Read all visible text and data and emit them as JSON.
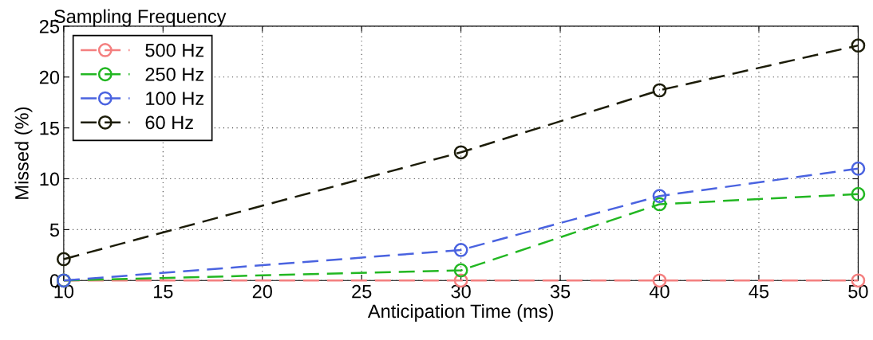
{
  "chart_data": {
    "type": "line",
    "title": "Sampling Frequency",
    "xlabel": "Anticipation Time (ms)",
    "ylabel": "Missed (%)",
    "x": [
      10,
      30,
      40,
      50
    ],
    "series": [
      {
        "name": "500 Hz",
        "color": "#f47f7f",
        "values": [
          0,
          0,
          0,
          0
        ]
      },
      {
        "name": "250 Hz",
        "color": "#22b722",
        "values": [
          0,
          1.0,
          7.5,
          8.5
        ]
      },
      {
        "name": "100 Hz",
        "color": "#4a63e0",
        "values": [
          0,
          3.0,
          8.3,
          11.0
        ]
      },
      {
        "name": "60 Hz",
        "color": "#1c1c08",
        "values": [
          2.1,
          12.6,
          18.7,
          23.1
        ]
      }
    ],
    "xlim": [
      10,
      50
    ],
    "xticks": [
      10,
      15,
      20,
      25,
      30,
      35,
      40,
      45,
      50
    ],
    "ylim": [
      0,
      25
    ],
    "yticks": [
      0,
      5,
      10,
      15,
      20,
      25
    ],
    "grid": true,
    "legend": "top left",
    "marker": "circle",
    "line_style": "dashed"
  }
}
